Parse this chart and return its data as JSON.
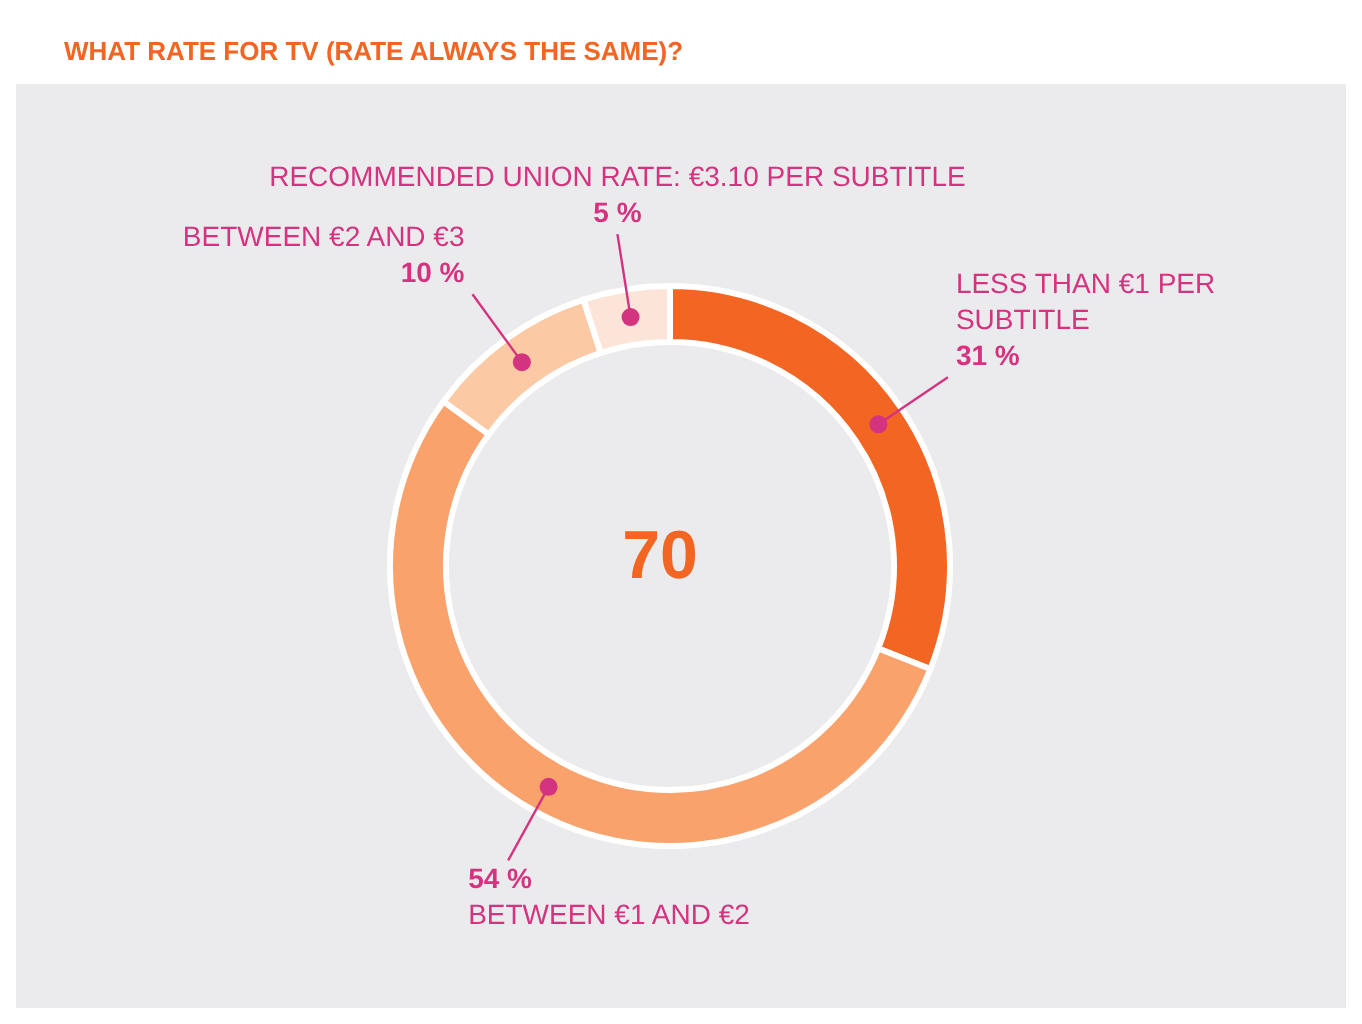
{
  "chart_data": {
    "type": "donut",
    "title": "WHAT RATE FOR TV (RATE ALWAYS THE SAME)?",
    "categories": [
      "LESS THAN €1 PER SUBTITLE",
      "BETWEEN €1 AND €2",
      "BETWEEN €2 AND €3",
      "RECOMMENDED UNION RATE: €3.10 PER SUBTITLE"
    ],
    "values": [
      31,
      54,
      10,
      5
    ],
    "value_labels": [
      "31 %",
      "54 %",
      "10 %",
      "5 %"
    ],
    "colors": [
      "#f26522",
      "#f9a26c",
      "#fcc9a5",
      "#fde4d8"
    ],
    "annotations": [
      "70"
    ],
    "legend": false
  }
}
